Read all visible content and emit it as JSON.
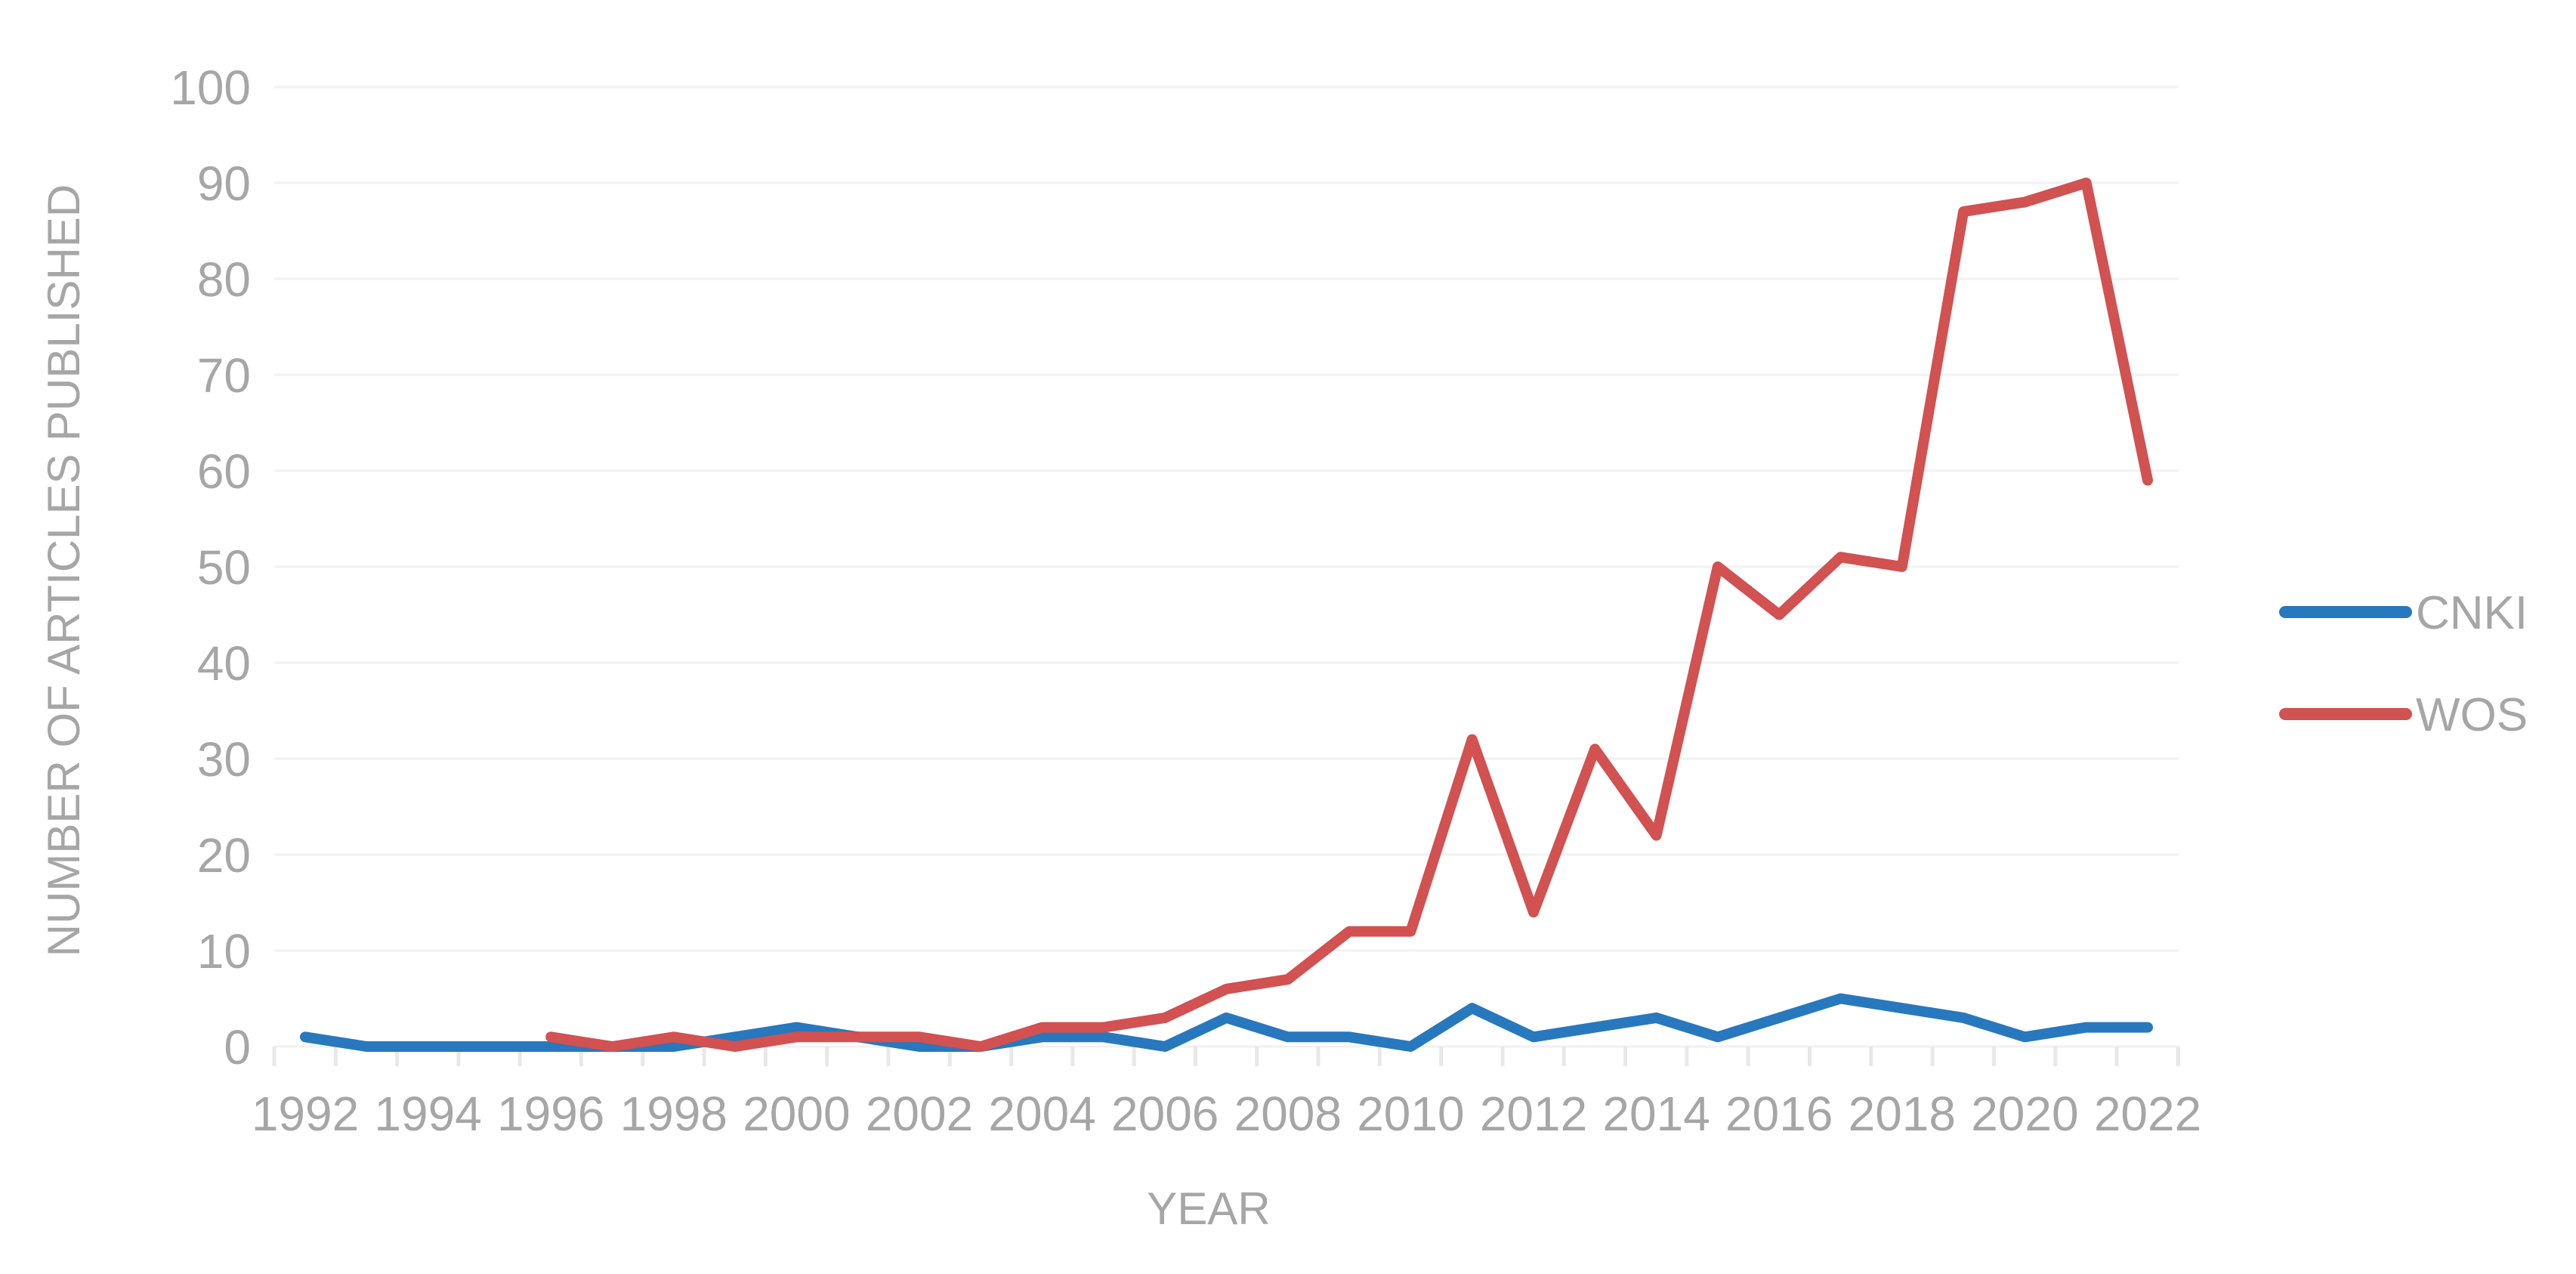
{
  "chart_data": {
    "type": "line",
    "title": "",
    "xlabel": "YEAR",
    "ylabel": "NUMBER OF ARTICLES PUBLISHED",
    "categories": [
      1992,
      1993,
      1994,
      1995,
      1996,
      1997,
      1998,
      1999,
      2000,
      2001,
      2002,
      2003,
      2004,
      2005,
      2006,
      2007,
      2008,
      2009,
      2010,
      2011,
      2012,
      2013,
      2014,
      2015,
      2016,
      2017,
      2018,
      2019,
      2020,
      2021,
      2022
    ],
    "x_label_every": 2,
    "ylim": [
      0,
      100
    ],
    "y_tick_step": 10,
    "grid": "horizontal-faint",
    "legend_position": "right",
    "background": "#FFFFFF",
    "axis_text_color": "#A6A6A6",
    "gridline_color": "#F2F2F2",
    "tick_color": "#E8E8E8",
    "series": [
      {
        "name": "CNKI",
        "color": "#2878BE",
        "values": [
          1,
          0,
          0,
          0,
          0,
          0,
          0,
          1,
          2,
          1,
          0,
          0,
          1,
          1,
          0,
          3,
          1,
          1,
          0,
          4,
          1,
          2,
          3,
          1,
          3,
          5,
          4,
          3,
          1,
          2,
          2
        ]
      },
      {
        "name": "WOS",
        "color": "#D25151",
        "values": [
          null,
          null,
          null,
          null,
          1,
          0,
          1,
          0,
          1,
          1,
          1,
          0,
          2,
          2,
          3,
          6,
          7,
          12,
          12,
          32,
          14,
          31,
          22,
          50,
          45,
          51,
          50,
          87,
          88,
          90,
          59
        ]
      }
    ]
  }
}
